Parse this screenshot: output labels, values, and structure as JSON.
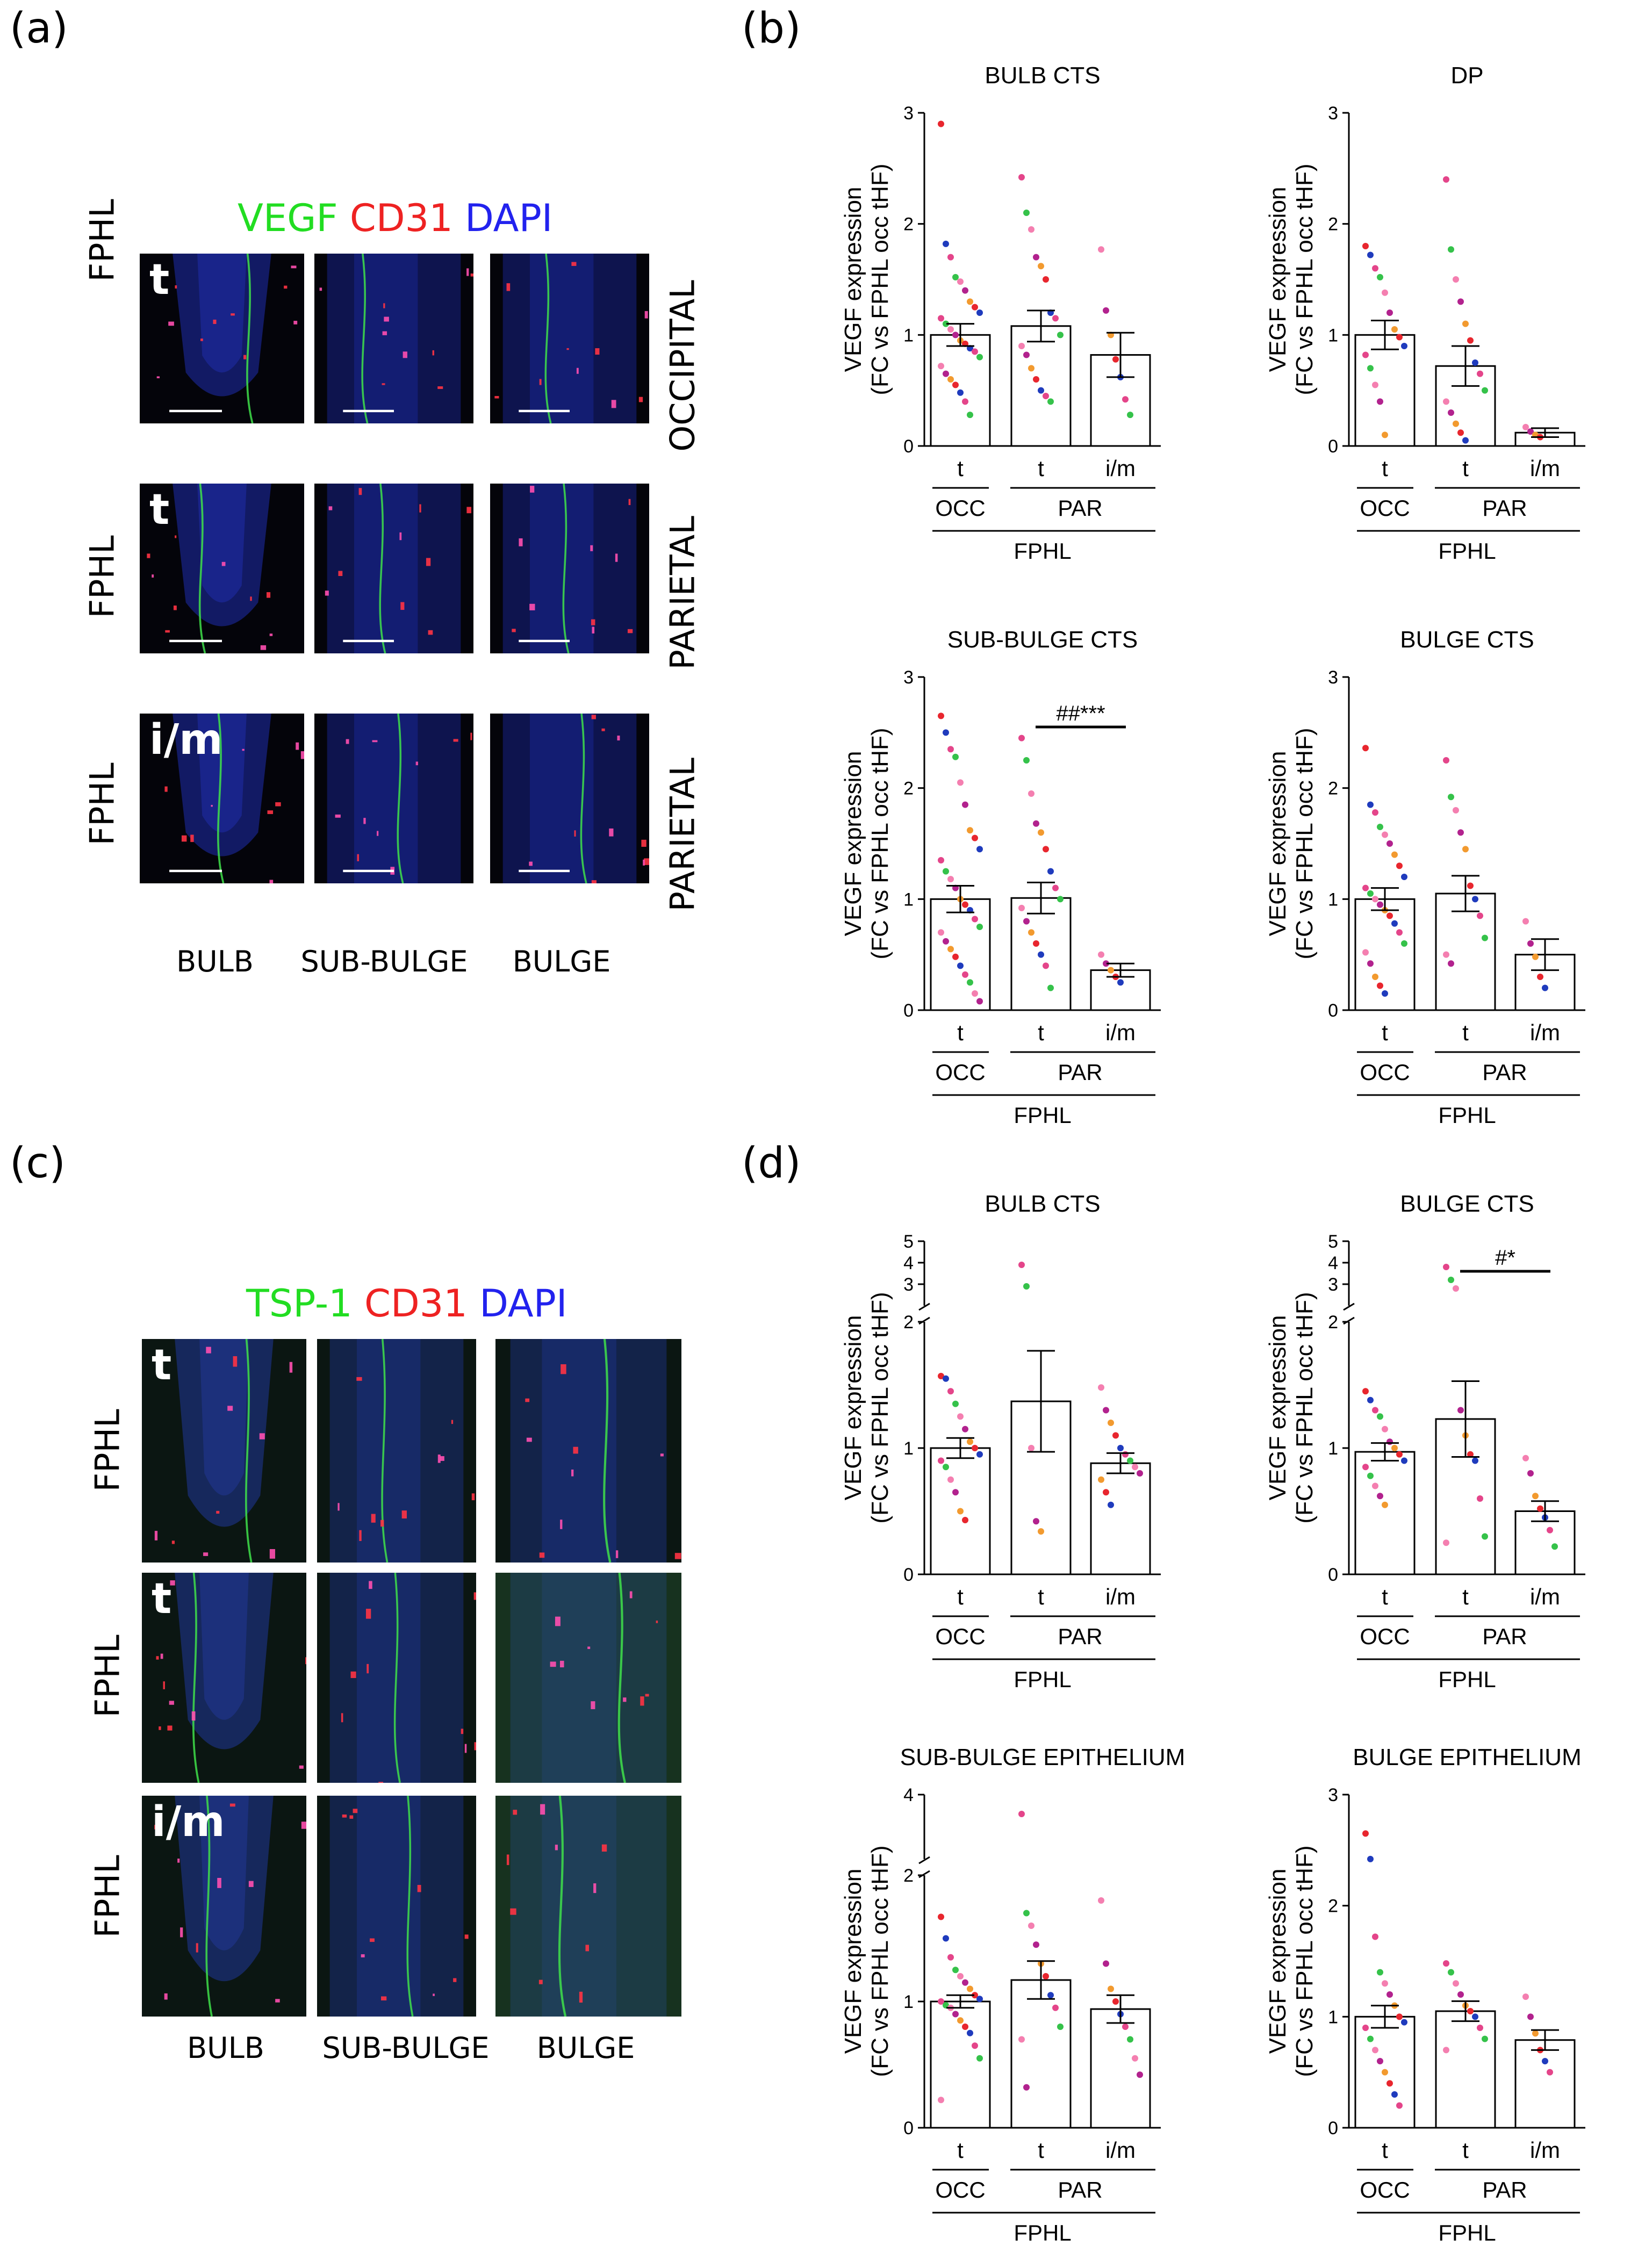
{
  "panels": {
    "a": "(a)",
    "b": "(b)",
    "c": "(c)",
    "d": "(d)"
  },
  "panel_a": {
    "stain": [
      {
        "text": "VEGF",
        "color": "#22dd22"
      },
      {
        "text": "CD31",
        "color": "#ee2222"
      },
      {
        "text": "DAPI",
        "color": "#2222ee"
      }
    ],
    "rows": [
      {
        "label": "FPHL",
        "corner": "t",
        "side": "OCCIPITAL"
      },
      {
        "label": "FPHL",
        "corner": "t",
        "side": "PARIETAL"
      },
      {
        "label": "FPHL",
        "corner": "i/m",
        "side": "PARIETAL"
      }
    ],
    "cols": [
      "BULB",
      "SUB-BULGE",
      "BULGE"
    ]
  },
  "panel_c": {
    "stain": [
      {
        "text": "TSP-1",
        "color": "#22dd22"
      },
      {
        "text": "CD31",
        "color": "#ee2222"
      },
      {
        "text": "DAPI",
        "color": "#2222ee"
      }
    ],
    "rows": [
      {
        "label": "FPHL",
        "corner": "t"
      },
      {
        "label": "FPHL",
        "corner": "t"
      },
      {
        "label": "FPHL",
        "corner": "i/m"
      }
    ],
    "cols": [
      "BULB",
      "SUB-BULGE",
      "BULGE"
    ]
  },
  "chart_data": [
    {
      "type": "bar",
      "title": "BULB CTS",
      "ylabel": [
        "VEGF expression",
        "(FC vs FPHL occ tHF)"
      ],
      "categories": [
        "t",
        "t",
        "i/m"
      ],
      "group_labels": [
        "OCC",
        "PAR"
      ],
      "bottom_label": "FPHL",
      "yticks": [
        "0",
        "1",
        "2",
        "3"
      ],
      "ylim": [
        0,
        3
      ],
      "values": [
        1.0,
        1.08,
        0.82
      ],
      "sem": [
        0.1,
        0.14,
        0.2
      ],
      "points": [
        [
          2.9,
          1.82,
          1.7,
          1.52,
          1.48,
          1.4,
          1.3,
          1.25,
          1.2,
          1.15,
          1.1,
          1.05,
          1.0,
          0.95,
          0.92,
          0.88,
          0.85,
          0.8,
          0.72,
          0.65,
          0.6,
          0.55,
          0.48,
          0.4,
          0.28
        ],
        [
          2.42,
          2.1,
          1.95,
          1.7,
          1.62,
          1.5,
          1.2,
          1.15,
          1.0,
          0.9,
          0.82,
          0.7,
          0.6,
          0.5,
          0.45,
          0.4
        ],
        [
          1.77,
          1.22,
          1.0,
          0.78,
          0.62,
          0.42,
          0.28
        ]
      ]
    },
    {
      "type": "bar",
      "title": "DP",
      "ylabel": [
        "VEGF expression",
        "(FC vs FPHL occ tHF)"
      ],
      "categories": [
        "t",
        "t",
        "i/m"
      ],
      "group_labels": [
        "OCC",
        "PAR"
      ],
      "bottom_label": "FPHL",
      "yticks": [
        "0",
        "1",
        "2",
        "3"
      ],
      "ylim": [
        0,
        3
      ],
      "values": [
        1.0,
        0.72,
        0.12
      ],
      "sem": [
        0.13,
        0.18,
        0.04
      ],
      "points": [
        [
          1.8,
          1.72,
          1.6,
          1.52,
          1.38,
          1.2,
          1.05,
          0.98,
          0.9,
          0.82,
          0.7,
          0.55,
          0.4,
          0.1
        ],
        [
          2.4,
          1.77,
          1.5,
          1.3,
          1.1,
          0.95,
          0.75,
          0.65,
          0.5,
          0.4,
          0.3,
          0.2,
          0.12,
          0.05
        ],
        [
          0.17,
          0.13,
          0.1,
          0.08
        ]
      ]
    },
    {
      "type": "bar",
      "title": "SUB-BULGE CTS",
      "ylabel": [
        "VEGF expression",
        "(FC vs FPHL occ tHF)"
      ],
      "categories": [
        "t",
        "t",
        "i/m"
      ],
      "group_labels": [
        "OCC",
        "PAR"
      ],
      "bottom_label": "FPHL",
      "yticks": [
        "0",
        "1",
        "2",
        "3"
      ],
      "ylim": [
        0,
        3
      ],
      "values": [
        1.0,
        1.01,
        0.36
      ],
      "sem": [
        0.12,
        0.14,
        0.06
      ],
      "annotation": {
        "text": "##***",
        "from": 1,
        "to": 2,
        "y": 2.55
      },
      "points": [
        [
          2.65,
          2.5,
          2.35,
          2.28,
          2.05,
          1.85,
          1.62,
          1.55,
          1.45,
          1.35,
          1.25,
          1.18,
          1.1,
          1.0,
          0.95,
          0.9,
          0.82,
          0.75,
          0.7,
          0.62,
          0.55,
          0.48,
          0.4,
          0.32,
          0.25,
          0.15,
          0.08
        ],
        [
          2.45,
          2.25,
          1.95,
          1.68,
          1.6,
          1.45,
          1.25,
          1.1,
          1.0,
          0.92,
          0.8,
          0.7,
          0.6,
          0.5,
          0.4,
          0.2
        ],
        [
          0.5,
          0.42,
          0.36,
          0.3,
          0.25
        ]
      ]
    },
    {
      "type": "bar",
      "title": "BULGE CTS",
      "ylabel": [
        "VEGF expression",
        "(FC vs FPHL occ tHF)"
      ],
      "categories": [
        "t",
        "t",
        "i/m"
      ],
      "group_labels": [
        "OCC",
        "PAR"
      ],
      "bottom_label": "FPHL",
      "yticks": [
        "0",
        "1",
        "2",
        "3"
      ],
      "ylim": [
        0,
        3
      ],
      "values": [
        1.0,
        1.05,
        0.5
      ],
      "sem": [
        0.1,
        0.16,
        0.14
      ],
      "points": [
        [
          2.36,
          1.85,
          1.78,
          1.65,
          1.58,
          1.5,
          1.4,
          1.3,
          1.2,
          1.1,
          1.05,
          1.0,
          0.95,
          0.9,
          0.85,
          0.78,
          0.7,
          0.6,
          0.52,
          0.42,
          0.3,
          0.22,
          0.15
        ],
        [
          2.25,
          1.92,
          1.8,
          1.6,
          1.45,
          1.12,
          1.0,
          0.85,
          0.65,
          0.5,
          0.42
        ],
        [
          0.8,
          0.6,
          0.48,
          0.3,
          0.2
        ]
      ]
    },
    {
      "type": "bar",
      "title": "BULB CTS",
      "ylabel": [
        "VEGF expression",
        "(FC vs FPHL occ tHF)"
      ],
      "categories": [
        "t",
        "t",
        "i/m"
      ],
      "group_labels": [
        "OCC",
        "PAR"
      ],
      "bottom_label": "FPHL",
      "yticks": [
        "0",
        "1",
        "2",
        "3",
        "4",
        "5"
      ],
      "ylim": [
        0,
        5
      ],
      "broken": true,
      "values": [
        1.0,
        1.37,
        0.88
      ],
      "sem": [
        0.08,
        0.4,
        0.08
      ],
      "points": [
        [
          1.57,
          1.55,
          1.45,
          1.35,
          1.25,
          1.15,
          1.05,
          1.0,
          0.95,
          0.9,
          0.85,
          0.75,
          0.65,
          0.5,
          0.43
        ],
        [
          3.9,
          2.9,
          1.0,
          0.42,
          0.34
        ],
        [
          1.48,
          1.3,
          1.2,
          1.1,
          1.0,
          0.95,
          0.9,
          0.85,
          0.8,
          0.75,
          0.65,
          0.55
        ]
      ]
    },
    {
      "type": "bar",
      "title": "BULGE CTS",
      "ylabel": [
        "VEGF expression",
        "(FC vs FPHL occ tHF)"
      ],
      "categories": [
        "t",
        "t",
        "i/m"
      ],
      "group_labels": [
        "OCC",
        "PAR"
      ],
      "bottom_label": "FPHL",
      "yticks": [
        "0",
        "1",
        "2",
        "3",
        "4",
        "5"
      ],
      "ylim": [
        0,
        5
      ],
      "broken": true,
      "values": [
        0.97,
        1.23,
        0.5
      ],
      "sem": [
        0.07,
        0.3,
        0.08
      ],
      "annotation": {
        "text": "#*",
        "from": 1,
        "to": 2,
        "y": 3.6
      },
      "points": [
        [
          1.45,
          1.38,
          1.3,
          1.25,
          1.15,
          1.05,
          1.0,
          0.95,
          0.9,
          0.85,
          0.78,
          0.7,
          0.62,
          0.55
        ],
        [
          3.8,
          3.2,
          2.8,
          1.3,
          1.1,
          0.95,
          0.9,
          0.6,
          0.3,
          0.25
        ],
        [
          0.92,
          0.8,
          0.62,
          0.52,
          0.45,
          0.35,
          0.22
        ]
      ]
    },
    {
      "type": "bar",
      "title": "SUB-BULGE EPITHELIUM",
      "ylabel": [
        "VEGF expression",
        "(FC vs FPHL occ tHF)"
      ],
      "categories": [
        "t",
        "t",
        "i/m"
      ],
      "group_labels": [
        "OCC",
        "PAR"
      ],
      "bottom_label": "FPHL",
      "yticks": [
        "0",
        "1",
        "2",
        "4"
      ],
      "ylim": [
        0,
        4
      ],
      "broken": true,
      "values": [
        1.0,
        1.17,
        0.94
      ],
      "sem": [
        0.05,
        0.15,
        0.11
      ],
      "points": [
        [
          1.67,
          1.5,
          1.35,
          1.25,
          1.2,
          1.15,
          1.1,
          1.05,
          1.02,
          1.0,
          0.97,
          0.95,
          0.9,
          0.85,
          0.8,
          0.75,
          0.65,
          0.55,
          0.22
        ],
        [
          3.4,
          1.7,
          1.6,
          1.45,
          1.3,
          1.2,
          1.05,
          0.95,
          0.8,
          0.7,
          0.32
        ],
        [
          1.8,
          1.3,
          1.1,
          1.0,
          0.9,
          0.8,
          0.7,
          0.55,
          0.42
        ]
      ]
    },
    {
      "type": "bar",
      "title": "BULGE EPITHELIUM",
      "ylabel": [
        "VEGF expression",
        "(FC vs FPHL occ tHF)"
      ],
      "categories": [
        "t",
        "t",
        "i/m"
      ],
      "group_labels": [
        "OCC",
        "PAR"
      ],
      "bottom_label": "FPHL",
      "yticks": [
        "0",
        "1",
        "2",
        "3"
      ],
      "ylim": [
        0,
        3
      ],
      "values": [
        1.0,
        1.05,
        0.79
      ],
      "sem": [
        0.1,
        0.09,
        0.09
      ],
      "points": [
        [
          2.65,
          2.42,
          1.72,
          1.4,
          1.3,
          1.2,
          1.1,
          1.0,
          0.95,
          0.9,
          0.8,
          0.7,
          0.6,
          0.5,
          0.4,
          0.3,
          0.2
        ],
        [
          1.48,
          1.4,
          1.3,
          1.2,
          1.1,
          1.05,
          1.0,
          0.9,
          0.8,
          0.7
        ],
        [
          1.18,
          1.0,
          0.85,
          0.7,
          0.6,
          0.5
        ]
      ]
    }
  ],
  "palette": [
    "#e8262e",
    "#1f3bbd",
    "#e4458a",
    "#35c24a",
    "#f47fb0",
    "#b2228e",
    "#f29a2f"
  ]
}
